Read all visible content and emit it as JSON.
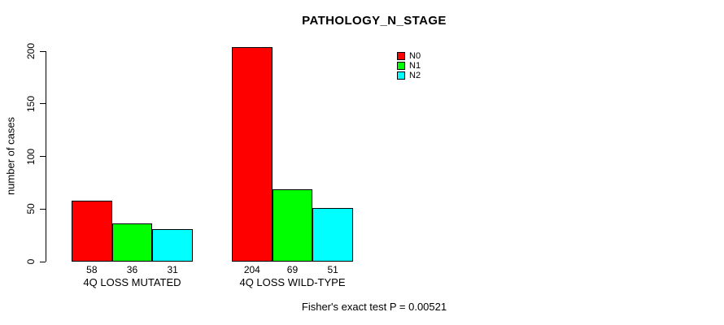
{
  "chart_data": {
    "type": "bar",
    "title": "PATHOLOGY_N_STAGE",
    "xlabel": "",
    "ylabel": "number of cases",
    "categories": [
      "4Q LOSS MUTATED",
      "4Q LOSS WILD-TYPE"
    ],
    "series": [
      {
        "name": "N0",
        "color": "#ff0000",
        "values": [
          58,
          204
        ]
      },
      {
        "name": "N1",
        "color": "#00ff00",
        "values": [
          36,
          69
        ]
      },
      {
        "name": "N2",
        "color": "#00ffff",
        "values": [
          31,
          51
        ]
      }
    ],
    "yticks": [
      0,
      50,
      100,
      150,
      200
    ],
    "ylim": [
      0,
      200
    ],
    "grid": false,
    "legend_position": "top-right-inside",
    "annotation": "Fisher's exact test P = 0.00521"
  }
}
